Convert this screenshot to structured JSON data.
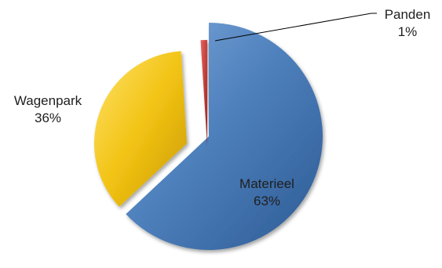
{
  "chart_data": {
    "type": "pie",
    "title": "",
    "exploded": true,
    "slices": [
      {
        "label": "Materieel",
        "value": 63,
        "percent_label": "63%",
        "color": "#4F81BD",
        "label_color": "#1F1F1F"
      },
      {
        "label": "Wagenpark",
        "value": 36,
        "percent_label": "36%",
        "color": "#F2C314",
        "label_color": "#1F1F1F"
      },
      {
        "label": "Panden",
        "value": 1,
        "percent_label": "1%",
        "color": "#C0504D",
        "label_color": "#1F1F1F"
      }
    ]
  }
}
